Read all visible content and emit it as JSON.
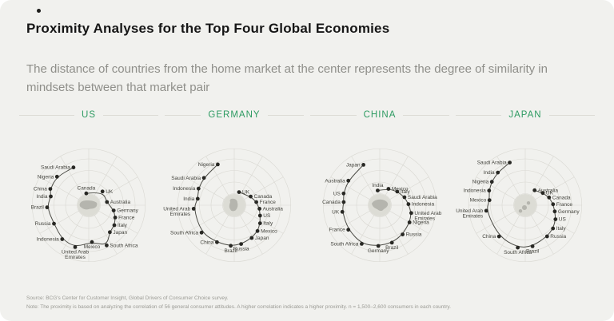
{
  "page": {
    "title": "Proximity Analyses for the Top Four Global Economies",
    "subtitle": "The distance of countries from the home market at the center represents the degree of similarity in mindsets between that market pair",
    "source": "Source: BCG's Center for Customer Insight, Global Drivers of Consumer Choice survey.",
    "note": "Note: The proximity is based on analyzing the correlation of 56 general consumer attitudes. A higher correlation indicates a higher proximity. n = 1,500–2,600 consumers in each country."
  },
  "colors": {
    "accent_green": "#2E9B62",
    "dot": "#282824",
    "line": "#4b4b45",
    "grid": "#d9d8d2",
    "center_fill": "#dcdcd5",
    "map_fill": "#b5b5ae",
    "background": "#f1f1ee",
    "label_text": "#45453f"
  },
  "chart_data": [
    {
      "type": "scatter",
      "title": "US",
      "home": "US",
      "encoding": "polar: angle in degrees (math convention), r = normalized distance from home market center; greater distance = less similar mindset; points connected in proximity-rank order",
      "points": [
        {
          "label": "Canada",
          "angle": 102,
          "r": 0.26
        },
        {
          "label": "UK",
          "angle": 45,
          "r": 0.42
        },
        {
          "label": "Australia",
          "angle": 10,
          "r": 0.4
        },
        {
          "label": "Germany",
          "angle": -12,
          "r": 0.55
        },
        {
          "label": "France",
          "angle": -25,
          "r": 0.63
        },
        {
          "label": "Italy",
          "angle": -38,
          "r": 0.7
        },
        {
          "label": "Japan",
          "angle": -52,
          "r": 0.74
        },
        {
          "label": "South Africa",
          "angle": -66,
          "r": 0.95
        },
        {
          "label": "Mexico",
          "angle": -85,
          "r": 0.8
        },
        {
          "label": "United Arab\nEmirates",
          "angle": -108,
          "r": 0.95
        },
        {
          "label": "Indonesia",
          "angle": -128,
          "r": 0.93
        },
        {
          "label": "Russia",
          "angle": -152,
          "r": 0.85
        },
        {
          "label": "Brazil",
          "angle": 183,
          "r": 0.9
        },
        {
          "label": "India",
          "angle": 167,
          "r": 0.84
        },
        {
          "label": "China",
          "angle": 157,
          "r": 0.9
        },
        {
          "label": "Nigeria",
          "angle": 138,
          "r": 0.92
        },
        {
          "label": "Saudi Arabia",
          "angle": 112,
          "r": 0.88
        }
      ]
    },
    {
      "type": "scatter",
      "title": "GERMANY",
      "home": "Germany",
      "encoding": "polar: angle in degrees (math convention), r = normalized distance from home market center; greater distance = less similar mindset; points connected in proximity-rank order",
      "points": [
        {
          "label": "UK",
          "angle": 70,
          "r": 0.3
        },
        {
          "label": "Canada",
          "angle": 28,
          "r": 0.4
        },
        {
          "label": "France",
          "angle": 8,
          "r": 0.48
        },
        {
          "label": "Australia",
          "angle": -8,
          "r": 0.55
        },
        {
          "label": "US",
          "angle": -22,
          "r": 0.6
        },
        {
          "label": "Italy",
          "angle": -35,
          "r": 0.68
        },
        {
          "label": "Mexico",
          "angle": -48,
          "r": 0.75
        },
        {
          "label": "Japan",
          "angle": -62,
          "r": 0.8
        },
        {
          "label": "Russia",
          "angle": -80,
          "r": 0.85
        },
        {
          "label": "Brazil",
          "angle": -95,
          "r": 0.88
        },
        {
          "label": "China",
          "angle": -115,
          "r": 0.88
        },
        {
          "label": "South Africa",
          "angle": -140,
          "r": 0.92
        },
        {
          "label": "United Arab\nEmirates",
          "angle": 185,
          "r": 0.88
        },
        {
          "label": "India",
          "angle": 170,
          "r": 0.8
        },
        {
          "label": "Indonesia",
          "angle": 155,
          "r": 0.85
        },
        {
          "label": "Saudi Arabia",
          "angle": 138,
          "r": 0.88
        },
        {
          "label": "Nigeria",
          "angle": 112,
          "r": 0.95
        }
      ]
    },
    {
      "type": "scatter",
      "title": "CHINA",
      "home": "China",
      "encoding": "polar: angle in degrees (math convention), r = normalized distance from home market center; greater distance = less similar mindset; points connected in proximity-rank order",
      "points": [
        {
          "label": "India",
          "angle": 98,
          "r": 0.32
        },
        {
          "label": "Mexico",
          "angle": 62,
          "r": 0.4
        },
        {
          "label": "Italy",
          "angle": 38,
          "r": 0.48
        },
        {
          "label": "Saudi Arabia",
          "angle": 18,
          "r": 0.56
        },
        {
          "label": "Indonesia",
          "angle": 2,
          "r": 0.62
        },
        {
          "label": "United Arab\nEmirates",
          "angle": -14,
          "r": 0.7
        },
        {
          "label": "Nigeria",
          "angle": -30,
          "r": 0.74
        },
        {
          "label": "Russia",
          "angle": -52,
          "r": 0.8
        },
        {
          "label": "Brazil",
          "angle": -72,
          "r": 0.85
        },
        {
          "label": "Germany",
          "angle": -92,
          "r": 0.88
        },
        {
          "label": "South Africa",
          "angle": -115,
          "r": 0.92
        },
        {
          "label": "France",
          "angle": -142,
          "r": 0.86
        },
        {
          "label": "UK",
          "angle": -170,
          "r": 0.82
        },
        {
          "label": "Canada",
          "angle": 175,
          "r": 0.78
        },
        {
          "label": "US",
          "angle": 162,
          "r": 0.82
        },
        {
          "label": "Australia",
          "angle": 142,
          "r": 0.86
        },
        {
          "label": "Japan",
          "angle": 112,
          "r": 0.94
        }
      ]
    },
    {
      "type": "scatter",
      "title": "JAPAN",
      "home": "Japan",
      "encoding": "polar: angle in degrees (math convention), r = normalized distance from home market center; greater distance = less similar mindset; points connected in proximity-rank order",
      "points": [
        {
          "label": "Australia",
          "angle": 58,
          "r": 0.38
        },
        {
          "label": "UK",
          "angle": 35,
          "r": 0.46
        },
        {
          "label": "Canada",
          "angle": 18,
          "r": 0.54
        },
        {
          "label": "France",
          "angle": 2,
          "r": 0.6
        },
        {
          "label": "Germany",
          "angle": -12,
          "r": 0.65
        },
        {
          "label": "US",
          "angle": -25,
          "r": 0.72
        },
        {
          "label": "Italy",
          "angle": -40,
          "r": 0.78
        },
        {
          "label": "Russia",
          "angle": -55,
          "r": 0.82
        },
        {
          "label": "Brazil",
          "angle": -80,
          "r": 0.9
        },
        {
          "label": "South Africa",
          "angle": -100,
          "r": 0.93
        },
        {
          "label": "China",
          "angle": -130,
          "r": 0.88
        },
        {
          "label": "United Arab\nEmirates",
          "angle": 188,
          "r": 0.85
        },
        {
          "label": "Mexico",
          "angle": 172,
          "r": 0.78
        },
        {
          "label": "Indonesia",
          "angle": 158,
          "r": 0.84
        },
        {
          "label": "Nigeria",
          "angle": 145,
          "r": 0.88
        },
        {
          "label": "India",
          "angle": 130,
          "r": 0.92
        },
        {
          "label": "Saudi Arabia",
          "angle": 110,
          "r": 0.98
        }
      ]
    }
  ]
}
